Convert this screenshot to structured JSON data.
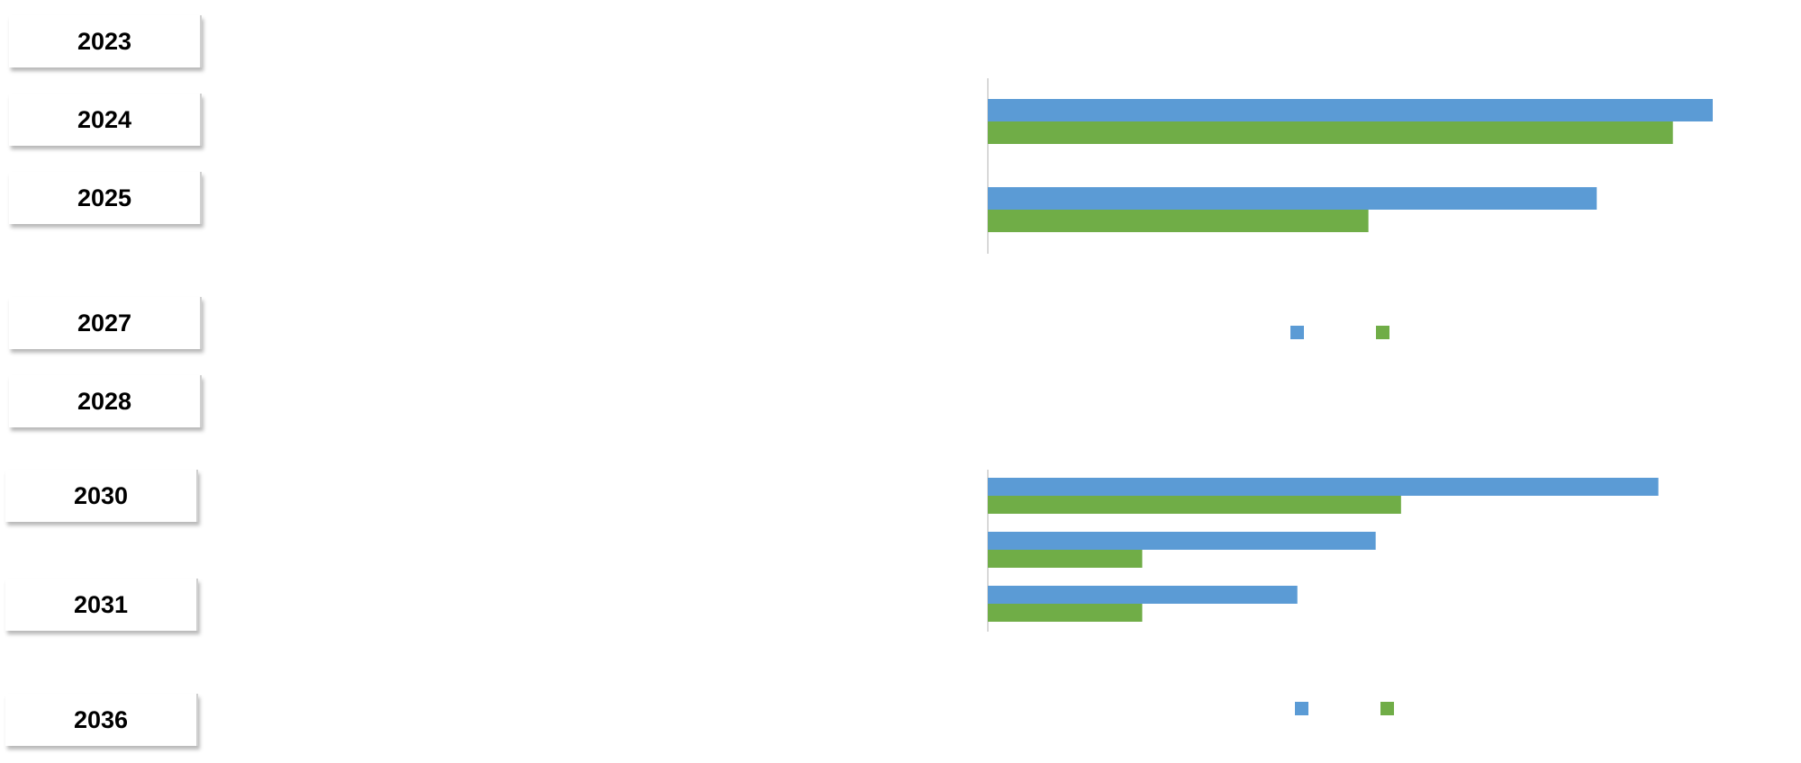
{
  "year_tabs": [
    {
      "label": "2023"
    },
    {
      "label": "2024"
    },
    {
      "label": "2025"
    },
    {
      "label": "2027"
    },
    {
      "label": "2028"
    },
    {
      "label": "2030"
    },
    {
      "label": "2031"
    },
    {
      "label": "2036"
    }
  ],
  "colors": {
    "series_1": "#5b9bd5",
    "series_2": "#70ad47",
    "axis": "#d9d9d9"
  },
  "chart_data": [
    {
      "type": "bar",
      "orientation": "horizontal",
      "categories": [
        "",
        ""
      ],
      "series": [
        {
          "values": [
            100,
            84
          ]
        },
        {
          "values": [
            94.5,
            52.5
          ]
        }
      ],
      "xlim": [
        0,
        100
      ],
      "legend": "bottom-center"
    },
    {
      "type": "bar",
      "orientation": "horizontal",
      "categories": [
        "",
        "",
        ""
      ],
      "series": [
        {
          "values": [
            92.5,
            53.5,
            42.7
          ]
        },
        {
          "values": [
            57,
            21.3,
            21.3
          ]
        }
      ],
      "xlim": [
        0,
        100
      ],
      "legend": "bottom-center"
    }
  ]
}
